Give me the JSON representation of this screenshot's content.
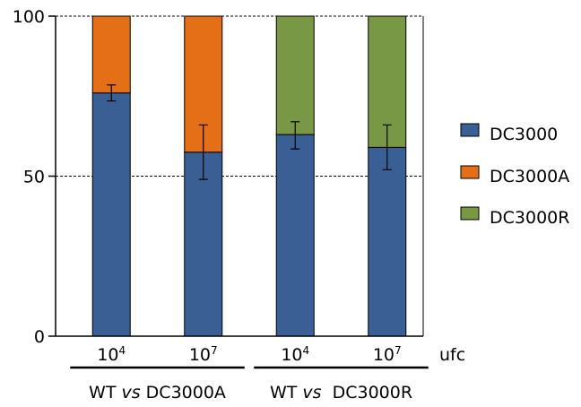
{
  "chart_data": {
    "type": "bar",
    "stacked": true,
    "categories": [
      {
        "base": "10",
        "exp": "4"
      },
      {
        "base": "10",
        "exp": "7"
      },
      {
        "base": "10",
        "exp": "4"
      },
      {
        "base": "10",
        "exp": "7"
      }
    ],
    "x_unit": "ufc",
    "groups": [
      {
        "label_parts": [
          "WT ",
          "vs",
          " DC3000A"
        ],
        "categories": [
          0,
          1
        ]
      },
      {
        "label_parts": [
          "WT ",
          "vs",
          "  DC3000R"
        ],
        "categories": [
          2,
          3
        ]
      }
    ],
    "series": [
      {
        "name": "DC3000",
        "color": "#3a5f94",
        "values": [
          76,
          57.5,
          63,
          59
        ]
      },
      {
        "name": "DC3000A",
        "color": "#e46f17",
        "values": [
          24,
          42.5,
          0,
          0
        ]
      },
      {
        "name": "DC3000R",
        "color": "#789845",
        "values": [
          0,
          0,
          37,
          41
        ]
      }
    ],
    "error_bars": [
      {
        "center": 76,
        "low": 73.5,
        "high": 78.5
      },
      {
        "center": 57.5,
        "low": 49,
        "high": 66
      },
      {
        "center": 63,
        "low": 58.5,
        "high": 67
      },
      {
        "center": 59,
        "low": 52,
        "high": 66
      }
    ],
    "ylim": [
      0,
      100
    ],
    "yticks": [
      0,
      50,
      100
    ],
    "gridlines": [
      50,
      100
    ],
    "legend_position": "right"
  }
}
